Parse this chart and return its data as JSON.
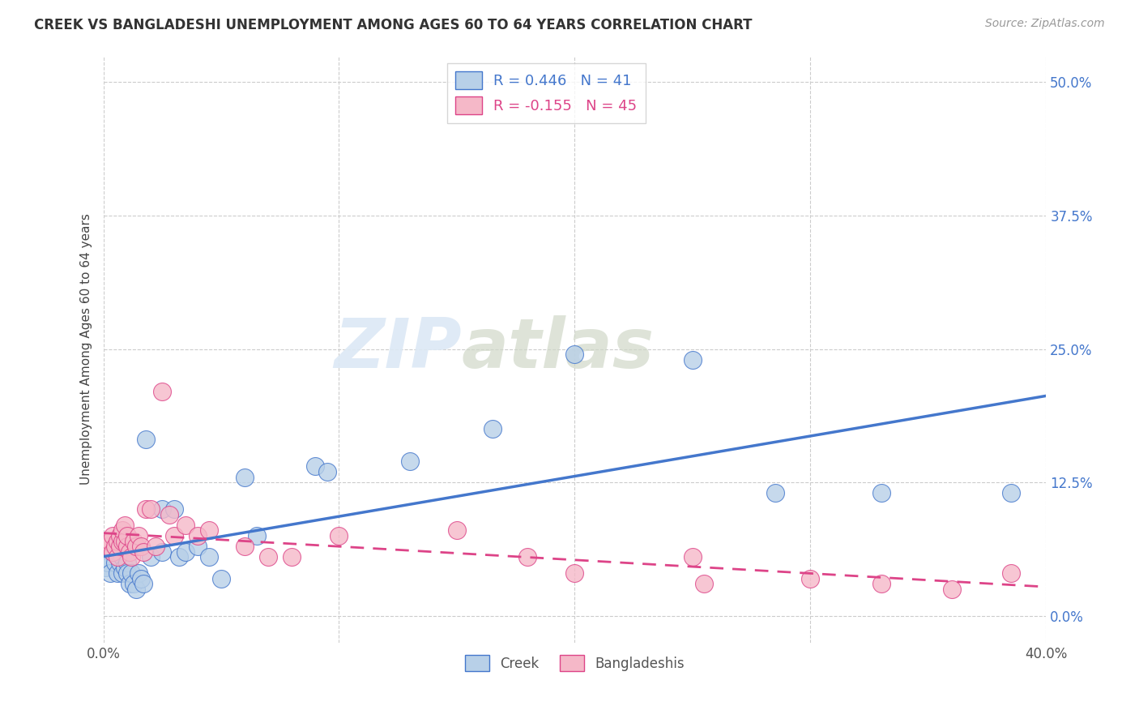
{
  "title": "CREEK VS BANGLADESHI UNEMPLOYMENT AMONG AGES 60 TO 64 YEARS CORRELATION CHART",
  "source": "Source: ZipAtlas.com",
  "ylabel": "Unemployment Among Ages 60 to 64 years",
  "xlim": [
    0.0,
    0.4
  ],
  "ylim": [
    -0.025,
    0.525
  ],
  "yticks": [
    0.0,
    0.125,
    0.25,
    0.375,
    0.5
  ],
  "ytick_labels": [
    "0.0%",
    "12.5%",
    "25.0%",
    "37.5%",
    "50.0%"
  ],
  "xticks": [
    0.0,
    0.1,
    0.2,
    0.3,
    0.4
  ],
  "xtick_labels": [
    "0.0%",
    "",
    "",
    "",
    "40.0%"
  ],
  "background_color": "#ffffff",
  "grid_color": "#cccccc",
  "creek_color": "#b8d0e8",
  "creek_line_color": "#4477cc",
  "bangladeshi_color": "#f5b8c8",
  "bangladeshi_line_color": "#dd4488",
  "creek_R": 0.446,
  "creek_N": 41,
  "bangladeshi_R": -0.155,
  "bangladeshi_N": 45,
  "creek_x": [
    0.001,
    0.002,
    0.003,
    0.004,
    0.005,
    0.006,
    0.006,
    0.007,
    0.008,
    0.008,
    0.009,
    0.01,
    0.01,
    0.011,
    0.012,
    0.013,
    0.014,
    0.015,
    0.016,
    0.017,
    0.018,
    0.02,
    0.025,
    0.025,
    0.03,
    0.032,
    0.035,
    0.04,
    0.045,
    0.05,
    0.06,
    0.065,
    0.09,
    0.095,
    0.13,
    0.165,
    0.2,
    0.25,
    0.285,
    0.33,
    0.385
  ],
  "creek_y": [
    0.045,
    0.05,
    0.04,
    0.06,
    0.05,
    0.04,
    0.06,
    0.05,
    0.04,
    0.055,
    0.045,
    0.05,
    0.04,
    0.03,
    0.04,
    0.03,
    0.025,
    0.04,
    0.035,
    0.03,
    0.165,
    0.055,
    0.06,
    0.1,
    0.1,
    0.055,
    0.06,
    0.065,
    0.055,
    0.035,
    0.13,
    0.075,
    0.14,
    0.135,
    0.145,
    0.175,
    0.245,
    0.24,
    0.115,
    0.115,
    0.115
  ],
  "bangladeshi_x": [
    0.001,
    0.002,
    0.003,
    0.004,
    0.004,
    0.005,
    0.006,
    0.006,
    0.007,
    0.007,
    0.008,
    0.008,
    0.009,
    0.009,
    0.01,
    0.01,
    0.011,
    0.012,
    0.013,
    0.014,
    0.015,
    0.016,
    0.017,
    0.018,
    0.02,
    0.022,
    0.025,
    0.028,
    0.03,
    0.035,
    0.04,
    0.045,
    0.06,
    0.07,
    0.08,
    0.1,
    0.15,
    0.18,
    0.2,
    0.25,
    0.255,
    0.3,
    0.33,
    0.36,
    0.385
  ],
  "bangladeshi_y": [
    0.07,
    0.065,
    0.07,
    0.06,
    0.075,
    0.065,
    0.055,
    0.07,
    0.065,
    0.075,
    0.07,
    0.08,
    0.07,
    0.085,
    0.065,
    0.075,
    0.06,
    0.055,
    0.07,
    0.065,
    0.075,
    0.065,
    0.06,
    0.1,
    0.1,
    0.065,
    0.21,
    0.095,
    0.075,
    0.085,
    0.075,
    0.08,
    0.065,
    0.055,
    0.055,
    0.075,
    0.08,
    0.055,
    0.04,
    0.055,
    0.03,
    0.035,
    0.03,
    0.025,
    0.04
  ]
}
